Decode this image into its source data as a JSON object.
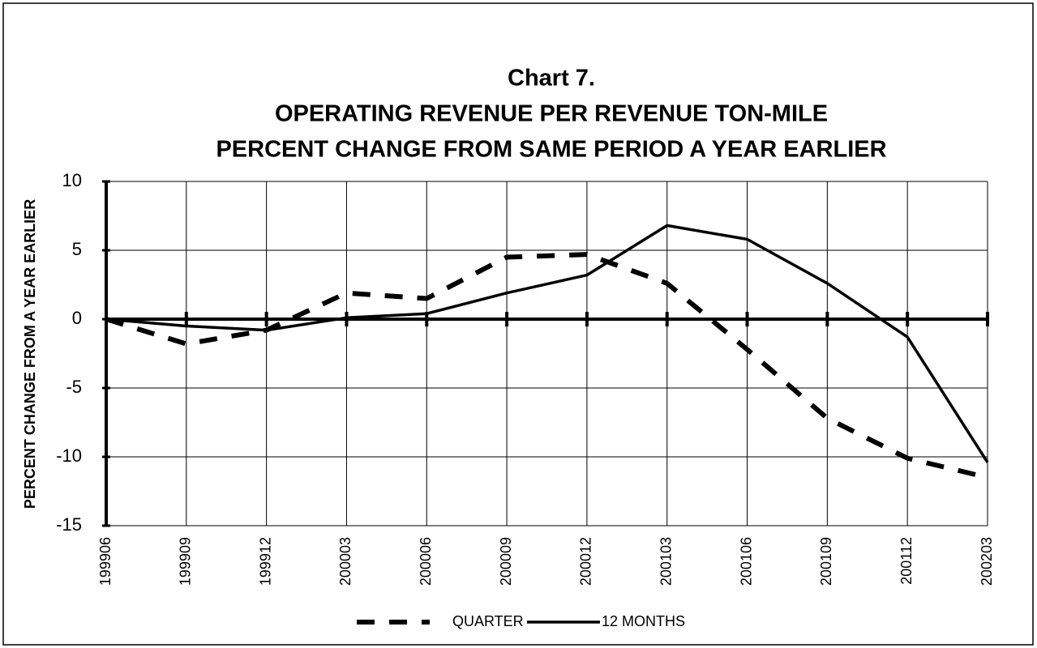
{
  "chart_data": {
    "type": "line",
    "title": [
      "Chart 7.",
      "OPERATING REVENUE PER REVENUE TON-MILE",
      "PERCENT CHANGE FROM SAME PERIOD A YEAR EARLIER"
    ],
    "y_label": "PERCENT CHANGE FROM A YEAR EARLIER",
    "categories": [
      "199906",
      "199909",
      "199912",
      "200003",
      "200006",
      "200009",
      "200012",
      "200103",
      "200106",
      "200109",
      "200112",
      "200203"
    ],
    "series": [
      {
        "name": "QUARTER",
        "color": "#000000",
        "style": "dashed",
        "values": [
          0,
          -1.8,
          -0.8,
          1.9,
          1.5,
          4.5,
          4.7,
          2.6,
          -2.2,
          -7.2,
          -10.1,
          -11.5
        ]
      },
      {
        "name": "12 MONTHS",
        "color": "#000000",
        "style": "solid",
        "values": [
          0,
          -0.5,
          -0.8,
          0.1,
          0.4,
          1.9,
          3.2,
          6.8,
          5.8,
          2.6,
          -1.3,
          -10.4
        ]
      }
    ],
    "ylim": [
      -15,
      10
    ],
    "yticks": [
      -15,
      -10,
      -5,
      0,
      5,
      10
    ],
    "grid": true,
    "legend": "bottom"
  }
}
